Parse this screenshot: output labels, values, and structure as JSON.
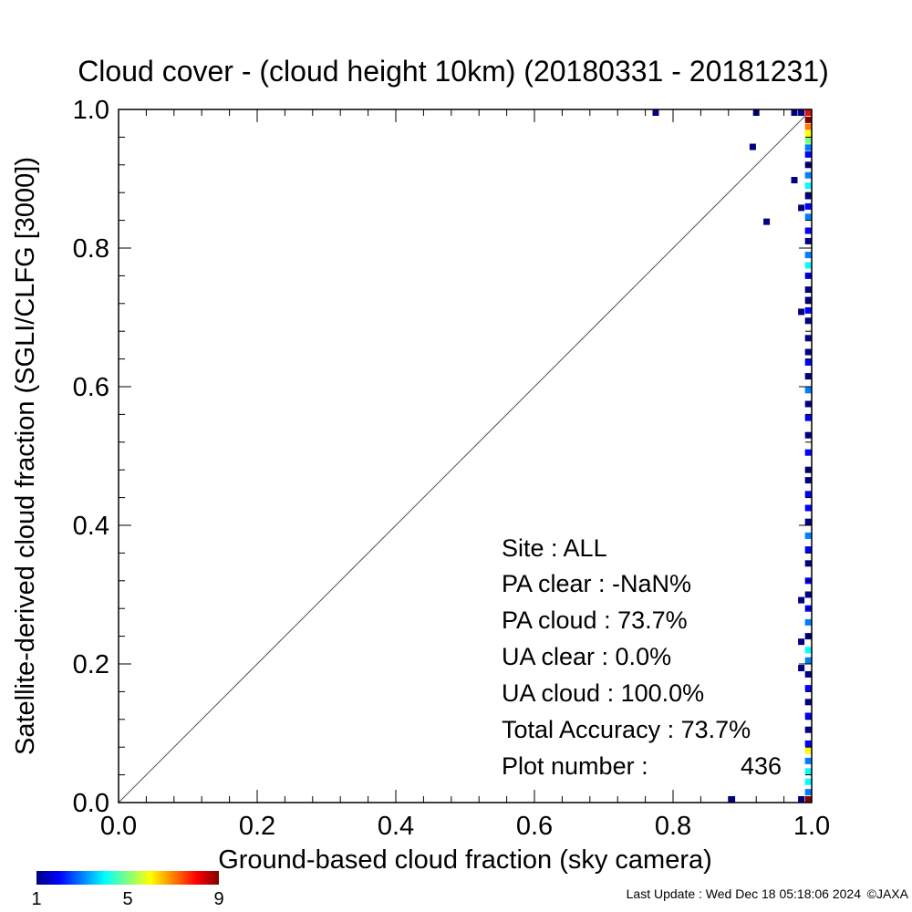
{
  "chart_data": {
    "type": "scatter",
    "title": "Cloud cover - (cloud height 10km)  (20180331 - 20181231)",
    "xlabel": "Ground-based cloud fraction (sky camera)",
    "ylabel": "Satellite-derived cloud fraction (SGLI/CLFG [3000])",
    "xlim": [
      0.0,
      1.0
    ],
    "ylim": [
      0.0,
      1.0
    ],
    "xticks": [
      "0.0",
      "0.2",
      "0.4",
      "0.6",
      "0.8",
      "1.0"
    ],
    "yticks": [
      "0.0",
      "0.2",
      "0.4",
      "0.6",
      "0.8",
      "1.0"
    ],
    "one_to_one_line": true,
    "grid": false,
    "colorbar": {
      "min": 1,
      "max": 9,
      "labels": [
        "1",
        "5",
        "9"
      ],
      "colors": [
        "#000080",
        "#0000ff",
        "#0080ff",
        "#00ffff",
        "#80ff80",
        "#ffff00",
        "#ff8000",
        "#ff0000",
        "#800000"
      ]
    },
    "points": [
      {
        "x": 0.775,
        "y": 0.996,
        "count": 1
      },
      {
        "x": 0.92,
        "y": 0.996,
        "count": 1
      },
      {
        "x": 0.975,
        "y": 0.996,
        "count": 1
      },
      {
        "x": 0.985,
        "y": 0.996,
        "count": 1
      },
      {
        "x": 0.915,
        "y": 0.946,
        "count": 1
      },
      {
        "x": 0.975,
        "y": 0.898,
        "count": 1
      },
      {
        "x": 0.935,
        "y": 0.838,
        "count": 1
      },
      {
        "x": 0.985,
        "y": 0.858,
        "count": 1
      },
      {
        "x": 0.985,
        "y": 0.708,
        "count": 1
      },
      {
        "x": 0.985,
        "y": 0.292,
        "count": 1
      },
      {
        "x": 0.985,
        "y": 0.232,
        "count": 1
      },
      {
        "x": 0.985,
        "y": 0.194,
        "count": 1
      },
      {
        "x": 0.885,
        "y": 0.004,
        "count": 1
      },
      {
        "x": 0.985,
        "y": 0.004,
        "count": 1
      },
      {
        "x": 0.995,
        "y": 0.996,
        "count": 8
      },
      {
        "x": 0.995,
        "y": 0.985,
        "count": 9
      },
      {
        "x": 0.995,
        "y": 0.975,
        "count": 7
      },
      {
        "x": 0.995,
        "y": 0.965,
        "count": 6
      },
      {
        "x": 0.995,
        "y": 0.955,
        "count": 5
      },
      {
        "x": 0.995,
        "y": 0.945,
        "count": 3
      },
      {
        "x": 0.995,
        "y": 0.935,
        "count": 2
      },
      {
        "x": 0.995,
        "y": 0.92,
        "count": 1
      },
      {
        "x": 0.995,
        "y": 0.905,
        "count": 3
      },
      {
        "x": 0.995,
        "y": 0.89,
        "count": 4
      },
      {
        "x": 0.995,
        "y": 0.875,
        "count": 1
      },
      {
        "x": 0.995,
        "y": 0.86,
        "count": 2
      },
      {
        "x": 0.995,
        "y": 0.845,
        "count": 3
      },
      {
        "x": 0.995,
        "y": 0.825,
        "count": 2
      },
      {
        "x": 0.995,
        "y": 0.81,
        "count": 1
      },
      {
        "x": 0.995,
        "y": 0.79,
        "count": 3
      },
      {
        "x": 0.995,
        "y": 0.775,
        "count": 4
      },
      {
        "x": 0.995,
        "y": 0.76,
        "count": 2
      },
      {
        "x": 0.995,
        "y": 0.74,
        "count": 1
      },
      {
        "x": 0.995,
        "y": 0.725,
        "count": 1
      },
      {
        "x": 0.995,
        "y": 0.71,
        "count": 2
      },
      {
        "x": 0.995,
        "y": 0.695,
        "count": 1
      },
      {
        "x": 0.995,
        "y": 0.67,
        "count": 1
      },
      {
        "x": 0.995,
        "y": 0.65,
        "count": 1
      },
      {
        "x": 0.995,
        "y": 0.635,
        "count": 2
      },
      {
        "x": 0.995,
        "y": 0.615,
        "count": 1
      },
      {
        "x": 0.995,
        "y": 0.595,
        "count": 3
      },
      {
        "x": 0.995,
        "y": 0.575,
        "count": 1
      },
      {
        "x": 0.995,
        "y": 0.555,
        "count": 2
      },
      {
        "x": 0.995,
        "y": 0.53,
        "count": 1
      },
      {
        "x": 0.995,
        "y": 0.505,
        "count": 2
      },
      {
        "x": 0.995,
        "y": 0.48,
        "count": 1
      },
      {
        "x": 0.995,
        "y": 0.465,
        "count": 1
      },
      {
        "x": 0.995,
        "y": 0.445,
        "count": 2
      },
      {
        "x": 0.995,
        "y": 0.425,
        "count": 2
      },
      {
        "x": 0.995,
        "y": 0.405,
        "count": 1
      },
      {
        "x": 0.995,
        "y": 0.385,
        "count": 3
      },
      {
        "x": 0.995,
        "y": 0.365,
        "count": 2
      },
      {
        "x": 0.995,
        "y": 0.345,
        "count": 1
      },
      {
        "x": 0.995,
        "y": 0.32,
        "count": 2
      },
      {
        "x": 0.995,
        "y": 0.3,
        "count": 1
      },
      {
        "x": 0.995,
        "y": 0.28,
        "count": 2
      },
      {
        "x": 0.995,
        "y": 0.26,
        "count": 3
      },
      {
        "x": 0.995,
        "y": 0.24,
        "count": 1
      },
      {
        "x": 0.995,
        "y": 0.22,
        "count": 4
      },
      {
        "x": 0.995,
        "y": 0.205,
        "count": 3
      },
      {
        "x": 0.995,
        "y": 0.185,
        "count": 1
      },
      {
        "x": 0.995,
        "y": 0.165,
        "count": 2
      },
      {
        "x": 0.995,
        "y": 0.145,
        "count": 1
      },
      {
        "x": 0.995,
        "y": 0.125,
        "count": 2
      },
      {
        "x": 0.995,
        "y": 0.105,
        "count": 1
      },
      {
        "x": 0.995,
        "y": 0.085,
        "count": 2
      },
      {
        "x": 0.995,
        "y": 0.075,
        "count": 6
      },
      {
        "x": 0.995,
        "y": 0.06,
        "count": 3
      },
      {
        "x": 0.995,
        "y": 0.045,
        "count": 4
      },
      {
        "x": 0.995,
        "y": 0.03,
        "count": 4
      },
      {
        "x": 0.995,
        "y": 0.015,
        "count": 3
      },
      {
        "x": 0.995,
        "y": 0.004,
        "count": 9
      }
    ],
    "stats": {
      "site": "Site : ALL",
      "pa_clear": "PA clear :  -NaN%",
      "pa_cloud": "PA cloud :  73.7%",
      "ua_clear": "UA clear :   0.0%",
      "ua_cloud": "UA cloud : 100.0%",
      "total_accuracy": "Total Accuracy :  73.7%",
      "plot_number_label": "Plot number :",
      "plot_number_value": "436"
    }
  },
  "footer": {
    "last_update": "Last Update : Wed Dec 18 05:18:06 2024",
    "copyright": "©JAXA"
  }
}
